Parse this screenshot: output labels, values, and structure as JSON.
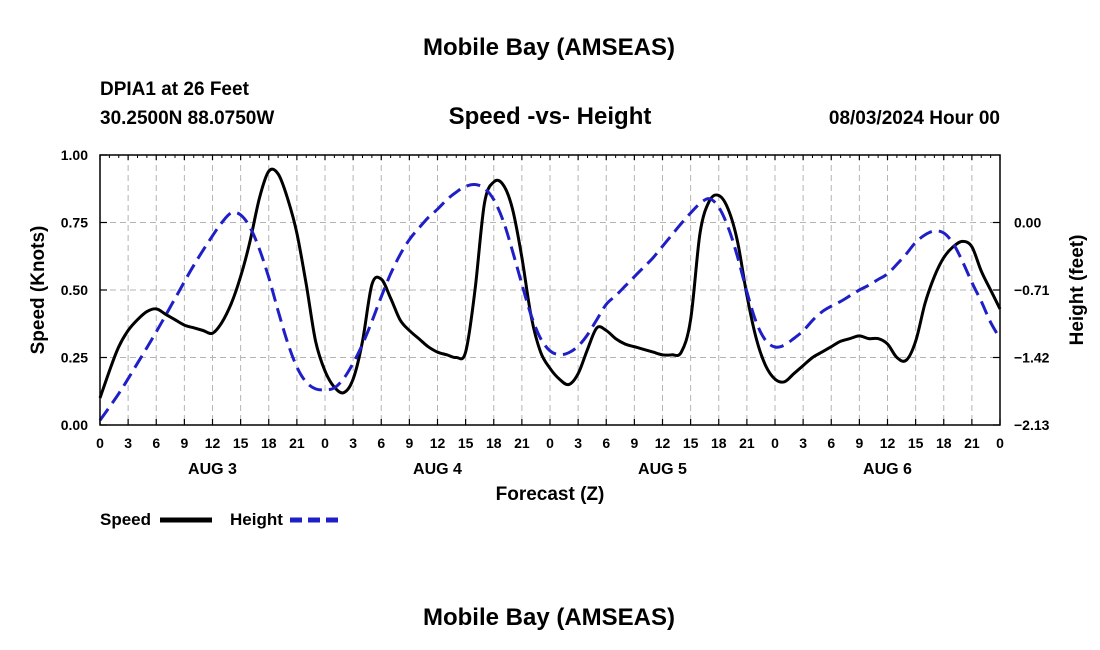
{
  "colors": {
    "speed": "#000000",
    "height": "#1f1fc8",
    "grid": "#b4b4b4"
  },
  "chart_data": {
    "type": "line",
    "title": "Mobile Bay (AMSEAS)",
    "station": "DPIA1 at 26 Feet",
    "coords": "30.2500N  88.0750W",
    "subtitle": "Speed -vs- Height",
    "datetime": "08/03/2024 Hour 00",
    "xlabel": "Forecast (Z)",
    "ylabel_left": "Speed (Knots)",
    "ylabel_right": "Height (feet)",
    "xlim": [
      0,
      96
    ],
    "ylim_left": [
      0,
      1
    ],
    "ylim_right": [
      -2.13,
      0.71
    ],
    "left_ticks": [
      {
        "v": 0,
        "label": "0.00"
      },
      {
        "v": 0.25,
        "label": "0.25"
      },
      {
        "v": 0.5,
        "label": "0.50"
      },
      {
        "v": 0.75,
        "label": "0.75"
      },
      {
        "v": 1.0,
        "label": "1.00"
      }
    ],
    "right_ticks": [
      {
        "v": -2.13,
        "label": "−2.13"
      },
      {
        "v": -1.42,
        "label": "−1.42"
      },
      {
        "v": -0.71,
        "label": "−0.71"
      },
      {
        "v": 0.0,
        "label": "0.00"
      }
    ],
    "x_tick_labels": [
      "0",
      "3",
      "6",
      "9",
      "12",
      "15",
      "18",
      "21",
      "0",
      "3",
      "6",
      "9",
      "12",
      "15",
      "18",
      "21",
      "0",
      "3",
      "6",
      "9",
      "12",
      "15",
      "18",
      "21",
      "0",
      "3",
      "6",
      "9",
      "12",
      "15",
      "18",
      "21",
      "0"
    ],
    "day_labels": [
      {
        "hour": 12,
        "label": "AUG 3"
      },
      {
        "hour": 36,
        "label": "AUG 4"
      },
      {
        "hour": 60,
        "label": "AUG 5"
      },
      {
        "hour": 84,
        "label": "AUG 6"
      }
    ],
    "legend": [
      {
        "name": "Speed",
        "style": "solid"
      },
      {
        "name": "Height",
        "style": "dashed"
      }
    ],
    "footer_title": "Mobile Bay (AMSEAS)",
    "series": [
      {
        "name": "Speed",
        "axis": "left",
        "units": "knots",
        "x": [
          0,
          1,
          2,
          3,
          4,
          5,
          6,
          7,
          8,
          9,
          10,
          11,
          12,
          13,
          14,
          15,
          16,
          17,
          18,
          19,
          20,
          21,
          22,
          23,
          24,
          25,
          26,
          27,
          28,
          29,
          30,
          31,
          32,
          33,
          34,
          35,
          36,
          37,
          38,
          39,
          40,
          41,
          42,
          43,
          44,
          45,
          46,
          47,
          48,
          49,
          50,
          51,
          52,
          53,
          54,
          55,
          56,
          57,
          58,
          59,
          60,
          61,
          62,
          63,
          64,
          65,
          66,
          67,
          68,
          69,
          70,
          71,
          72,
          73,
          74,
          75,
          76,
          77,
          78,
          79,
          80,
          81,
          82,
          83,
          84,
          85,
          86,
          87,
          88,
          89,
          90,
          91,
          92,
          93,
          94,
          95,
          96
        ],
        "values": [
          0.1,
          0.2,
          0.29,
          0.35,
          0.39,
          0.42,
          0.43,
          0.41,
          0.39,
          0.37,
          0.36,
          0.35,
          0.34,
          0.38,
          0.45,
          0.55,
          0.68,
          0.84,
          0.94,
          0.93,
          0.84,
          0.71,
          0.52,
          0.31,
          0.2,
          0.14,
          0.12,
          0.17,
          0.31,
          0.52,
          0.54,
          0.47,
          0.39,
          0.35,
          0.32,
          0.29,
          0.27,
          0.26,
          0.25,
          0.27,
          0.5,
          0.82,
          0.9,
          0.89,
          0.8,
          0.62,
          0.4,
          0.27,
          0.21,
          0.17,
          0.15,
          0.19,
          0.28,
          0.36,
          0.35,
          0.32,
          0.3,
          0.29,
          0.28,
          0.27,
          0.26,
          0.26,
          0.27,
          0.39,
          0.71,
          0.83,
          0.85,
          0.8,
          0.68,
          0.48,
          0.32,
          0.22,
          0.17,
          0.16,
          0.19,
          0.22,
          0.25,
          0.27,
          0.29,
          0.31,
          0.32,
          0.33,
          0.32,
          0.32,
          0.3,
          0.25,
          0.24,
          0.31,
          0.45,
          0.55,
          0.62,
          0.66,
          0.68,
          0.66,
          0.57,
          0.5,
          0.43
        ]
      },
      {
        "name": "Height",
        "axis": "right",
        "units": "feet",
        "x": [
          0,
          2,
          4,
          6,
          8,
          10,
          12,
          13,
          14,
          15,
          16,
          17,
          18,
          19,
          20,
          21,
          22,
          23,
          24,
          25,
          26,
          27,
          28,
          29,
          30,
          31,
          32,
          33,
          34,
          35,
          36,
          37,
          38,
          39,
          40,
          41,
          42,
          43,
          44,
          45,
          46,
          47,
          48,
          49,
          50,
          51,
          52,
          53,
          54,
          55,
          56,
          57,
          58,
          59,
          60,
          61,
          62,
          63,
          64,
          65,
          66,
          67,
          68,
          69,
          70,
          71,
          72,
          73,
          74,
          75,
          76,
          77,
          78,
          79,
          80,
          81,
          82,
          83,
          84,
          85,
          86,
          87,
          88,
          89,
          90,
          91,
          92,
          93,
          94,
          95,
          96
        ],
        "values": [
          -2.08,
          -1.8,
          -1.48,
          -1.15,
          -0.8,
          -0.45,
          -0.14,
          0.0,
          0.1,
          0.08,
          -0.05,
          -0.28,
          -0.58,
          -0.93,
          -1.26,
          -1.52,
          -1.68,
          -1.75,
          -1.76,
          -1.74,
          -1.64,
          -1.48,
          -1.28,
          -1.04,
          -0.78,
          -0.54,
          -0.34,
          -0.18,
          -0.06,
          0.05,
          0.14,
          0.24,
          0.32,
          0.38,
          0.4,
          0.36,
          0.24,
          0.02,
          -0.3,
          -0.65,
          -0.98,
          -1.22,
          -1.35,
          -1.39,
          -1.37,
          -1.3,
          -1.18,
          -1.02,
          -0.86,
          -0.77,
          -0.67,
          -0.57,
          -0.47,
          -0.37,
          -0.25,
          -0.13,
          -0.01,
          0.1,
          0.2,
          0.25,
          0.16,
          -0.05,
          -0.36,
          -0.73,
          -1.05,
          -1.24,
          -1.31,
          -1.29,
          -1.22,
          -1.14,
          -1.03,
          -0.94,
          -0.88,
          -0.83,
          -0.77,
          -0.71,
          -0.66,
          -0.6,
          -0.54,
          -0.44,
          -0.33,
          -0.21,
          -0.13,
          -0.09,
          -0.11,
          -0.22,
          -0.41,
          -0.63,
          -0.83,
          -1.05,
          -1.22
        ]
      }
    ]
  }
}
